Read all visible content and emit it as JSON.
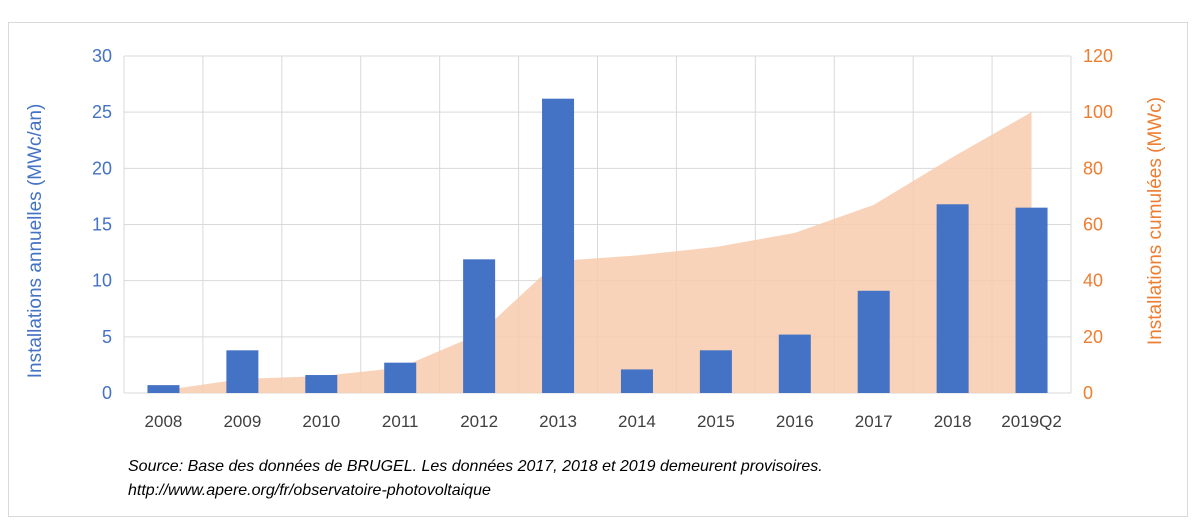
{
  "chart_data": {
    "type": "bar+area",
    "categories": [
      "2008",
      "2009",
      "2010",
      "2011",
      "2012",
      "2013",
      "2014",
      "2015",
      "2016",
      "2017",
      "2018",
      "2019Q2"
    ],
    "series": [
      {
        "type": "bar",
        "axis": "left",
        "values": [
          0.7,
          3.8,
          1.6,
          2.7,
          11.9,
          26.2,
          2.1,
          3.8,
          5.2,
          9.1,
          16.8,
          16.5
        ]
      },
      {
        "type": "area",
        "axis": "right",
        "values": [
          1,
          5,
          6,
          9,
          21,
          47,
          49,
          52,
          57,
          67,
          84,
          100
        ]
      }
    ],
    "ylabel_left": "Installations annuelles (MWc/an)",
    "ylabel_right": "Installations cumulées (MWc)",
    "ylim_left": [
      0,
      30
    ],
    "ylim_right": [
      0,
      120
    ],
    "yticks_left": [
      0,
      5,
      10,
      15,
      20,
      25,
      30
    ],
    "yticks_right": [
      0,
      20,
      40,
      60,
      80,
      100,
      120
    ],
    "grid": true,
    "colors": {
      "bar": "#4472c4",
      "area": "#f8cbad",
      "left_axis": "#4472c4",
      "right_axis": "#ed7d31"
    }
  },
  "source": {
    "line1": "Source: Base des données de BRUGEL. Les données 2017, 2018 et 2019 demeurent provisoires.",
    "line2": "http://www.apere.org/fr/observatoire-photovoltaique"
  }
}
